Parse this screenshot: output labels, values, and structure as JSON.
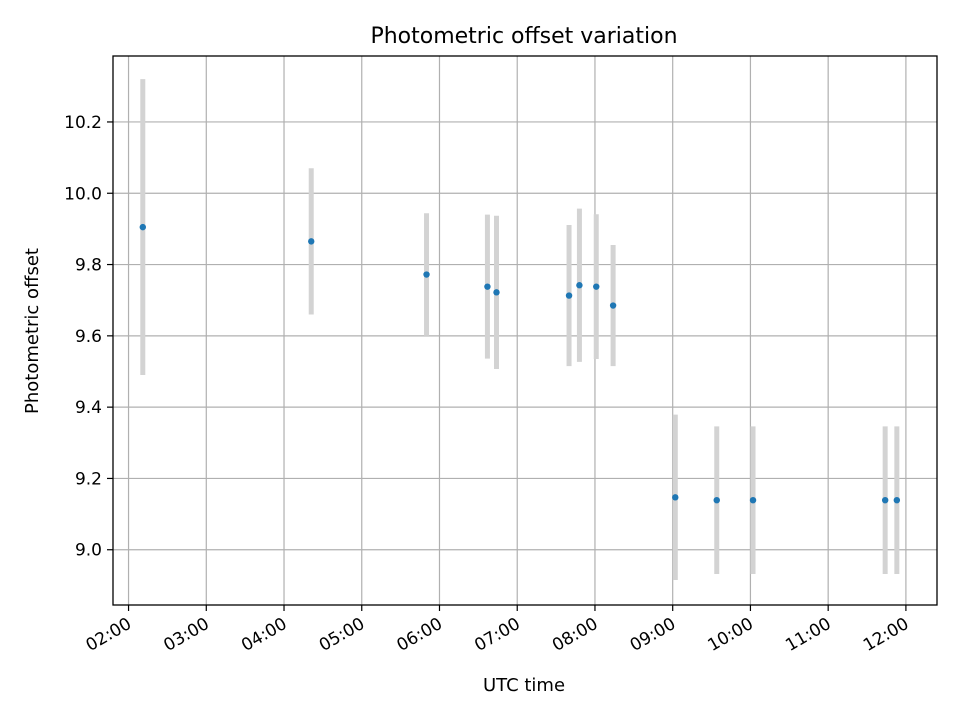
{
  "chart_data": {
    "type": "scatter",
    "title": "Photometric offset variation",
    "xlabel": "UTC time",
    "ylabel": "Photometric offset",
    "x_ticks": [
      "02:00",
      "03:00",
      "04:00",
      "05:00",
      "06:00",
      "07:00",
      "08:00",
      "09:00",
      "10:00",
      "11:00",
      "12:00"
    ],
    "y_ticks": [
      "9.0",
      "9.2",
      "9.4",
      "9.6",
      "9.8",
      "10.0",
      "10.2"
    ],
    "xlim": [
      "01:48",
      "12:24"
    ],
    "ylim": [
      8.845,
      10.385
    ],
    "grid": true,
    "colors": {
      "marker": "#1f77b4",
      "error_bar": "#d3d3d3"
    },
    "series": [
      {
        "x": [
          "02:11",
          "04:21",
          "05:50",
          "06:37",
          "06:44",
          "07:40",
          "07:48",
          "08:01",
          "08:14",
          "09:02",
          "09:34",
          "10:02",
          "11:44",
          "11:53"
        ],
        "y": [
          9.905,
          9.865,
          9.772,
          9.738,
          9.722,
          9.713,
          9.742,
          9.738,
          9.685,
          9.147,
          9.139,
          9.139,
          9.139,
          9.139
        ],
        "y_error": [
          0.415,
          0.205,
          0.172,
          0.202,
          0.215,
          0.198,
          0.215,
          0.203,
          0.17,
          0.232,
          0.207,
          0.207,
          0.207,
          0.207
        ]
      }
    ]
  }
}
